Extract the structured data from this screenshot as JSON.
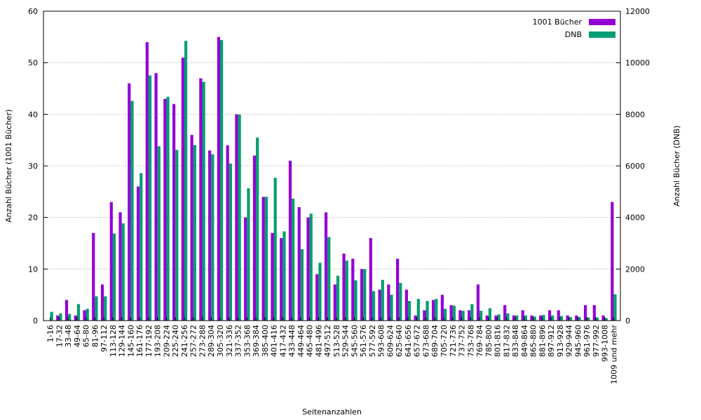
{
  "chart_data": {
    "type": "bar",
    "title": "",
    "xlabel": "Seitenanzahlen",
    "ylabel_left": "Anzahl Bücher (1001 Bücher)",
    "ylabel_right": "Anzahl Bücher (DNB)",
    "ylim_left": [
      0,
      60
    ],
    "ylim_right": [
      0,
      12000
    ],
    "yticks_left": [
      "0",
      "10",
      "20",
      "30",
      "40",
      "50",
      "60"
    ],
    "yticks_right": [
      "0",
      "2000",
      "4000",
      "6000",
      "8000",
      "10000",
      "12000"
    ],
    "grid": true,
    "legend_position": "top-right",
    "categories": [
      "1-16",
      "17-32",
      "33-48",
      "49-64",
      "65-80",
      "81-96",
      "97-112",
      "113-128",
      "129-144",
      "145-160",
      "161-176",
      "177-192",
      "193-208",
      "209-224",
      "225-240",
      "241-256",
      "257-272",
      "273-288",
      "289-304",
      "305-320",
      "321-336",
      "337-352",
      "353-368",
      "369-384",
      "385-400",
      "401-416",
      "417-432",
      "433-448",
      "449-464",
      "465-480",
      "481-496",
      "497-512",
      "513-528",
      "529-544",
      "545-560",
      "561-576",
      "577-592",
      "593-608",
      "609-624",
      "625-640",
      "641-656",
      "657-672",
      "673-688",
      "689-704",
      "705-720",
      "721-736",
      "737-752",
      "753-768",
      "769-784",
      "785-800",
      "801-816",
      "817-832",
      "833-848",
      "849-864",
      "865-880",
      "881-896",
      "897-912",
      "913-928",
      "929-944",
      "945-960",
      "961-976",
      "977-992",
      "993-1008",
      "1009 und mehr"
    ],
    "series": [
      {
        "name": "1001 Bücher",
        "color": "#9400d3",
        "axis": "left",
        "values": [
          0,
          1,
          4,
          1,
          2,
          17,
          7,
          23,
          21,
          46,
          26,
          54,
          48,
          43,
          42,
          51,
          36,
          47,
          33,
          55,
          34,
          40,
          20,
          32,
          24,
          17,
          16,
          31,
          22,
          20,
          9,
          21,
          7,
          13,
          12,
          10,
          16,
          6,
          7,
          12,
          6,
          1,
          2,
          4,
          5,
          3,
          2,
          2,
          7,
          1,
          1,
          3,
          1,
          2,
          1,
          1,
          2,
          2,
          1,
          1,
          3,
          3,
          1,
          23
        ]
      },
      {
        "name": "DNB",
        "color": "#009e73",
        "axis": "right",
        "values": [
          340,
          280,
          260,
          640,
          460,
          940,
          940,
          3380,
          3770,
          8520,
          5720,
          9510,
          6760,
          8680,
          6620,
          10850,
          6810,
          9260,
          6450,
          10880,
          6090,
          7990,
          5130,
          7100,
          4800,
          5540,
          3460,
          4730,
          2770,
          4150,
          2240,
          3240,
          1740,
          2330,
          1560,
          2000,
          1140,
          1580,
          1000,
          1460,
          760,
          840,
          760,
          840,
          460,
          580,
          380,
          640,
          380,
          480,
          240,
          280,
          200,
          200,
          160,
          220,
          200,
          180,
          140,
          140,
          120,
          120,
          100,
          1020
        ]
      }
    ]
  }
}
